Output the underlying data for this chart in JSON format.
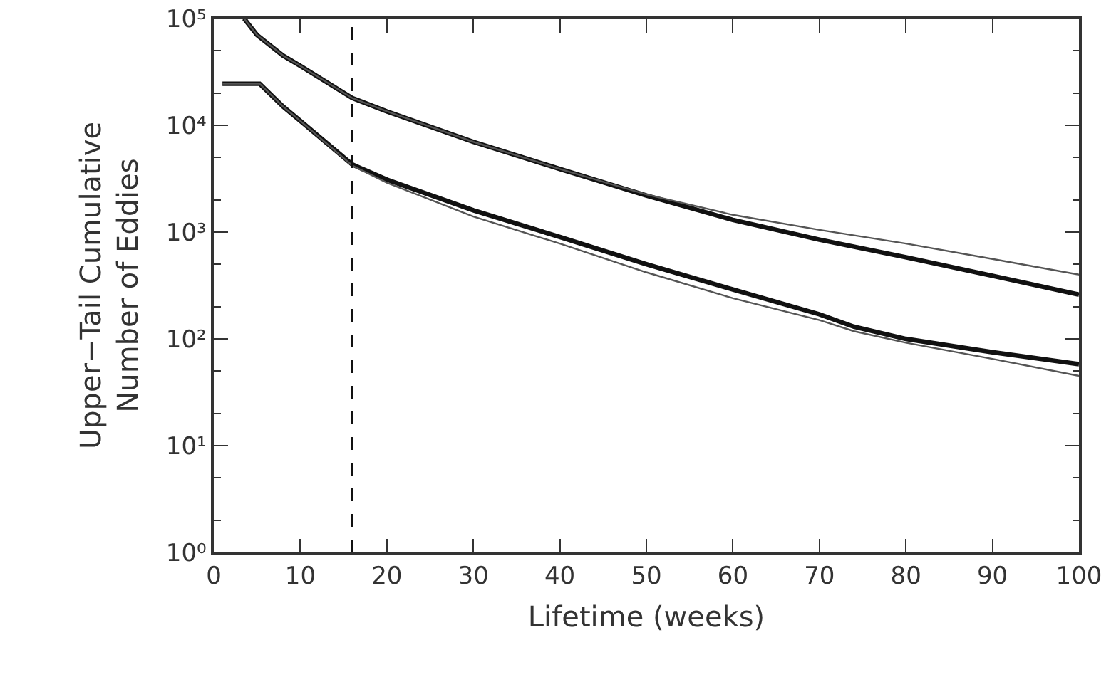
{
  "chart_data": {
    "type": "line",
    "xlabel": "Lifetime (weeks)",
    "ylabel": "Upper−Tail Cumulative\nNumber of Eddies",
    "log": "y",
    "grid": false,
    "marker": "none",
    "line_style": "solid",
    "xlim": [
      0,
      100
    ],
    "xticks": [
      0,
      10,
      20,
      30,
      40,
      50,
      60,
      70,
      80,
      90,
      100
    ],
    "ylim": [
      1,
      100000
    ],
    "yticks": [
      {
        "value": 1,
        "label": "10⁰"
      },
      {
        "value": 10,
        "label": "10¹"
      },
      {
        "value": 100,
        "label": "10²"
      },
      {
        "value": 1000,
        "label": "10³"
      },
      {
        "value": 10000,
        "label": "10⁴"
      },
      {
        "value": 100000,
        "label": "10⁵"
      }
    ],
    "series": [
      {
        "color": "#111111",
        "x": [
          3.5,
          5,
          8,
          10,
          16,
          20,
          30,
          40,
          50,
          60,
          70,
          80,
          90,
          100
        ],
        "values": [
          100000,
          70000,
          45000,
          36000,
          18000,
          13500,
          7000,
          3900,
          2200,
          1300,
          850,
          580,
          390,
          260
        ]
      },
      {
        "color": "#555555",
        "x": [
          3.5,
          5,
          8,
          10,
          16,
          20,
          30,
          40,
          50,
          60,
          70,
          80,
          90,
          100
        ],
        "values": [
          100000,
          70000,
          45000,
          36000,
          18000,
          13500,
          7000,
          3900,
          2250,
          1450,
          1050,
          780,
          560,
          400
        ]
      },
      {
        "color": "#111111",
        "x": [
          1,
          5.3,
          8,
          10,
          16,
          20,
          30,
          40,
          50,
          60,
          70,
          74,
          80,
          90,
          100
        ],
        "values": [
          24500,
          24500,
          15000,
          11000,
          4300,
          3100,
          1600,
          900,
          500,
          290,
          170,
          130,
          100,
          75,
          58
        ]
      },
      {
        "color": "#555555",
        "x": [
          1,
          5.3,
          8,
          10,
          16,
          20,
          30,
          40,
          50,
          60,
          70,
          74,
          80,
          90,
          100
        ],
        "values": [
          24500,
          24500,
          15000,
          11000,
          4200,
          2900,
          1400,
          780,
          420,
          240,
          150,
          118,
          92,
          65,
          45
        ]
      }
    ],
    "ref_lines": [
      {
        "axis": "x",
        "value": 16,
        "color": "#111111",
        "line_style": "dashed"
      }
    ]
  }
}
